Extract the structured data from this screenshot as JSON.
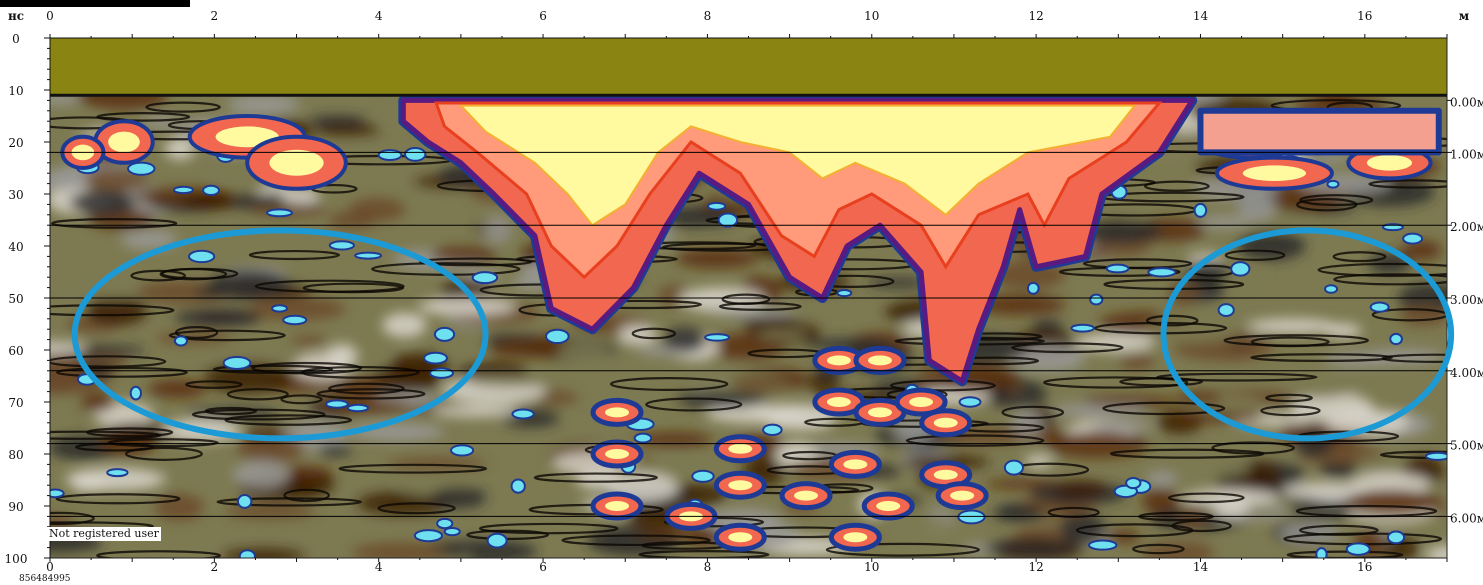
{
  "chart_data": {
    "type": "heatmap",
    "title": "",
    "x_unit": "м",
    "y_unit": "нс",
    "x_range": [
      0,
      17
    ],
    "y_range": [
      0,
      100
    ],
    "x_ticks": [
      "0",
      "2",
      "4",
      "6",
      "8",
      "10",
      "12",
      "14",
      "16"
    ],
    "y_ticks": [
      "0",
      "10",
      "20",
      "30",
      "40",
      "50",
      "60",
      "70",
      "80",
      "90",
      "100"
    ],
    "bottom_x_ticks": [
      "0",
      "2",
      "4",
      "6",
      "8",
      "10",
      "12",
      "14",
      "16"
    ],
    "depth_labels": [
      "0.00м",
      "1.00м",
      "2.00м",
      "3.00м",
      "4.00м",
      "5.00м",
      "6.00м"
    ],
    "depth_lines_ns": [
      12,
      22,
      36,
      50,
      64,
      78,
      92
    ],
    "air_layer_ns": [
      0,
      11
    ],
    "highlighted_regions": [
      {
        "shape": "ellipse",
        "x_center": 2.8,
        "y_center_ns": 57,
        "x_radius": 2.5,
        "y_radius_ns": 20,
        "color": "#1c9ad6"
      },
      {
        "shape": "ellipse",
        "x_center": 15.3,
        "y_center_ns": 57,
        "x_radius": 1.75,
        "y_radius_ns": 20,
        "color": "#1c9ad6"
      }
    ],
    "colors": {
      "air": "#8a8512",
      "strong": "#fffaa0",
      "hot": "#f2674f",
      "cold": "#1e3a94",
      "cyan": "#6fe0f0",
      "brown": "#5a2e0a",
      "olive": "#7d7a52",
      "grey": "#9a9a98"
    }
  },
  "watermark": "Not registered user",
  "serial": "856484995"
}
